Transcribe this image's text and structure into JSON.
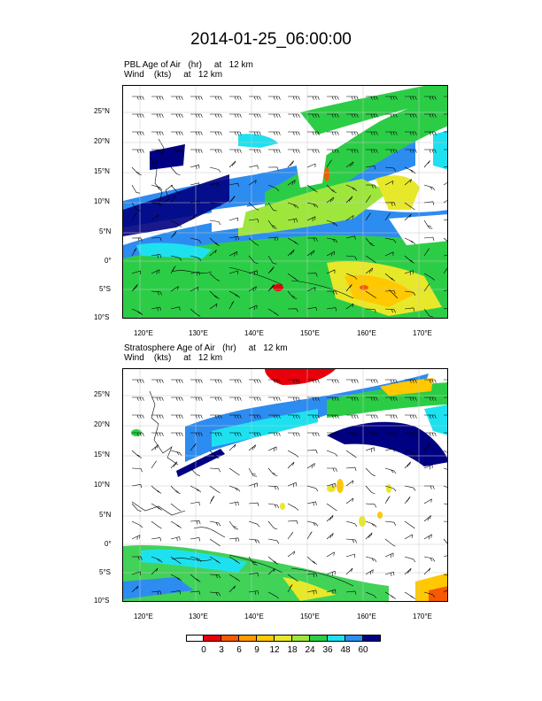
{
  "title": "2014-01-25_06:00:00",
  "panels": [
    {
      "line1": "PBL Age of Air   (hr)     at   12 km",
      "line2": "Wind    (kts)     at   12 km"
    },
    {
      "line1": "Stratosphere Age of Air   (hr)     at   12 km",
      "line2": "Wind    (kts)     at   12 km"
    }
  ],
  "axes": {
    "lat_labels": [
      "25°N",
      "20°N",
      "15°N",
      "10°N",
      "5°N",
      "0°",
      "5°S",
      "10°S"
    ],
    "lon_labels": [
      "120°E",
      "130°E",
      "140°E",
      "150°E",
      "160°E",
      "170°E"
    ]
  },
  "colorbar": {
    "labels": [
      "0",
      "3",
      "6",
      "9",
      "12",
      "18",
      "24",
      "36",
      "48",
      "60"
    ],
    "colors": [
      "#ffffff",
      "#e8000b",
      "#f55a00",
      "#ff9a00",
      "#ffc800",
      "#e8e82a",
      "#9ee63c",
      "#2ccd46",
      "#1ee1f0",
      "#2d8cf0",
      "#000082"
    ]
  }
}
